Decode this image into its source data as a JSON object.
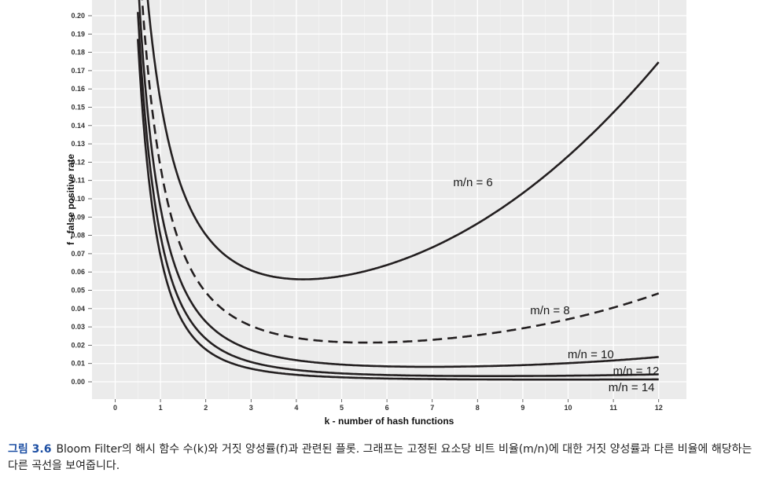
{
  "caption": {
    "label": "그림 3.6",
    "text": "Bloom Filter의 해시 함수 수(k)와 거짓 양성률(f)과 관련된 플롯. 그래프는 고정된 요소당 비트 비율(m/n)에 대한 거짓 양성률과 다른 비율에 해당하는 다른 곡선을 보여줍니다."
  },
  "chart_data": {
    "type": "line",
    "xlabel": "k - number of hash functions",
    "ylabel": "f - false positive rate",
    "xlim": [
      -0.5,
      12.5
    ],
    "ylim": [
      -0.01,
      0.21
    ],
    "x_ticks": [
      "0",
      "1",
      "2",
      "3",
      "4",
      "5",
      "6",
      "7",
      "8",
      "9",
      "10",
      "11",
      "12"
    ],
    "y_ticks": [
      "0.00",
      "0.01",
      "0.02",
      "0.03",
      "0.04",
      "0.05",
      "0.06",
      "0.07",
      "0.08",
      "0.09",
      "0.10",
      "0.11",
      "0.12",
      "0.13",
      "0.14",
      "0.15",
      "0.16",
      "0.17",
      "0.18",
      "0.19",
      "0.20"
    ],
    "grid": true,
    "background": "#ebebeb",
    "x_range": [
      0.5,
      12
    ],
    "series": [
      {
        "name": "m/n = 6",
        "ratio": 6,
        "dashed": false,
        "label_at": [
          7.9,
          0.109
        ]
      },
      {
        "name": "m/n = 8",
        "ratio": 8,
        "dashed": true,
        "label_at": [
          9.6,
          0.039
        ]
      },
      {
        "name": "m/n = 10",
        "ratio": 10,
        "dashed": false,
        "label_at": [
          10.5,
          0.015
        ]
      },
      {
        "name": "m/n = 12",
        "ratio": 12,
        "dashed": false,
        "label_at": [
          11.5,
          0.006
        ]
      },
      {
        "name": "m/n = 14",
        "ratio": 14,
        "dashed": false,
        "label_at": [
          11.4,
          -0.003
        ]
      }
    ]
  }
}
